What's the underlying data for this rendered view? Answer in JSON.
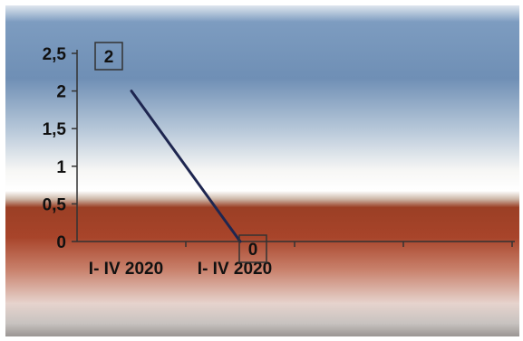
{
  "chart_data": {
    "type": "line",
    "categories": [
      "I- IV 2020",
      "I- IV 2020"
    ],
    "series": [
      {
        "values": [
          2,
          0
        ]
      }
    ],
    "data_labels": [
      "2",
      "0"
    ],
    "ylim": [
      0,
      2.5
    ],
    "yticks": [
      "0",
      "0,5",
      "1",
      "1,5",
      "2",
      "2,5"
    ],
    "grid": false,
    "legend": "none",
    "colors": {
      "line": "#1e2650",
      "axis": "#333333",
      "text": "#111111",
      "background_top": "#6f8fb5",
      "background_mid": "#f4f4f2",
      "background_band": "#a8442a",
      "background_bottom": "#e6d3cd"
    }
  }
}
